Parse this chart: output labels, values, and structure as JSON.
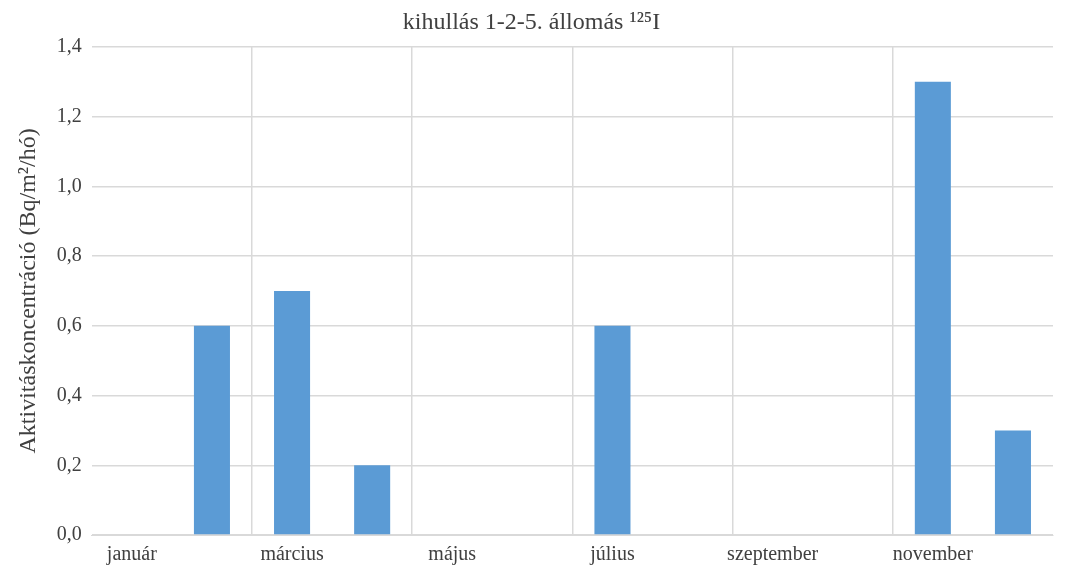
{
  "chart_data": {
    "type": "bar",
    "title": "kihullás 1-2-5. állomás ¹²⁵I",
    "ylabel": "Aktivitáskoncentráció (Bq/m²/hó)",
    "categories": [
      "január",
      null,
      "március",
      null,
      "május",
      null,
      "július",
      null,
      "szeptember",
      null,
      "november",
      null
    ],
    "values": [
      null,
      0.6,
      0.7,
      0.2,
      null,
      null,
      0.6,
      null,
      null,
      null,
      1.3,
      0.3
    ],
    "color": "#5b9bd5",
    "ylim": [
      0,
      1.4
    ],
    "yticks": [
      {
        "value": 0,
        "label": "0,0"
      },
      {
        "value": 0.2,
        "label": "0,2"
      },
      {
        "value": 0.4,
        "label": "0,4"
      },
      {
        "value": 0.6,
        "label": "0,6"
      },
      {
        "value": 0.8,
        "label": "0,8"
      },
      {
        "value": 1,
        "label": "1,0"
      },
      {
        "value": 1.2,
        "label": "1,2"
      },
      {
        "value": 1.4,
        "label": "1,4"
      }
    ],
    "grid": true,
    "legend": false
  }
}
